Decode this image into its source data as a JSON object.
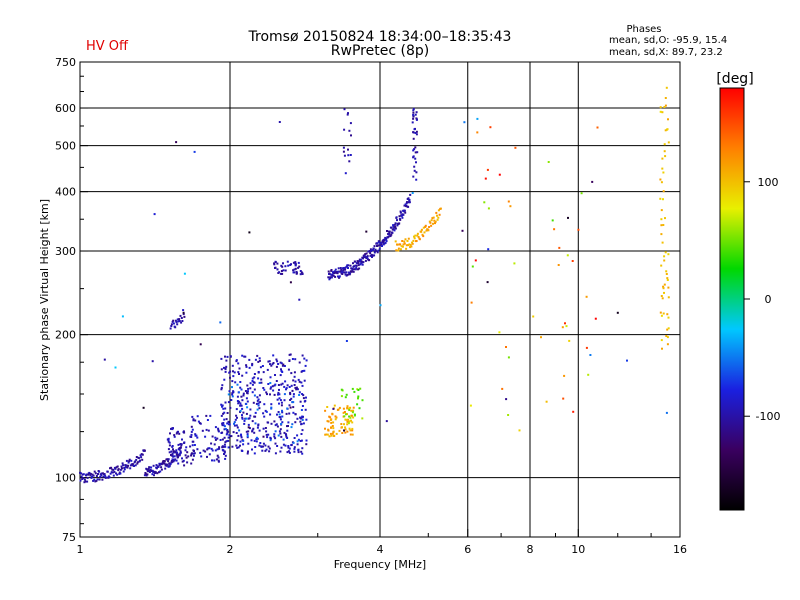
{
  "header": {
    "title_line1": "Tromsø 20150824 18:34:00–18:35:43",
    "title_line2": "RwPretec (8p)",
    "status": "HV Off",
    "phases_title": "Phases",
    "phases_line1": "mean, sd,O: -95.9, 15.4",
    "phases_line2": "mean, sd,X:  89.7, 23.2"
  },
  "colors": {
    "status": "#e00000",
    "grid": "#000000",
    "points_dominant": "#1e2ed6"
  },
  "chart_data": {
    "type": "scatter",
    "xlabel": "Frequency [MHz]",
    "ylabel": "Stationary phase Virtual Height [km]",
    "x_scale": "log",
    "y_scale": "log",
    "xlim": [
      1,
      16
    ],
    "ylim": [
      75,
      750
    ],
    "x_ticks": [
      1,
      2,
      4,
      6,
      8,
      10,
      16
    ],
    "x_minor_ticks": [
      3,
      5,
      7,
      9,
      12,
      14
    ],
    "y_ticks": [
      75,
      100,
      200,
      300,
      400,
      500,
      600,
      750
    ],
    "y_minor_ticks": [
      80,
      90,
      125,
      150,
      175,
      250,
      350,
      450,
      550,
      650,
      700
    ],
    "grid": true,
    "colorbar": {
      "label": "[deg]",
      "ticks": [
        100,
        0,
        -100
      ],
      "range": [
        -180,
        180
      ],
      "stops": [
        "#000000",
        "#3a0060",
        "#1a20e0",
        "#00c8ff",
        "#00d800",
        "#e8f000",
        "#ff8000",
        "#ff0000"
      ]
    },
    "series": [
      {
        "x_range": [
          1.0,
          1.35
        ],
        "y_range": [
          100,
          112
        ],
        "phase": -100,
        "count": 120,
        "kind": "trace"
      },
      {
        "x_range": [
          1.35,
          1.6
        ],
        "y_range": [
          103,
          115
        ],
        "phase": -100,
        "count": 90,
        "kind": "trace"
      },
      {
        "x_range": [
          1.5,
          1.7
        ],
        "y_range": [
          106,
          128
        ],
        "phase": -100,
        "count": 70,
        "kind": "cloud"
      },
      {
        "x_range": [
          1.65,
          2.0
        ],
        "y_range": [
          108,
          135
        ],
        "phase": -95,
        "count": 80,
        "kind": "cloud"
      },
      {
        "x_range": [
          1.92,
          2.85
        ],
        "y_range": [
          112,
          182
        ],
        "phase": -95,
        "count": 420,
        "kind": "cloud"
      },
      {
        "x_range": [
          1.95,
          2.85
        ],
        "y_range": [
          118,
          160
        ],
        "phase": -60,
        "count": 50,
        "kind": "cloud"
      },
      {
        "x_range": [
          1.52,
          1.62
        ],
        "y_range": [
          210,
          222
        ],
        "phase": -100,
        "count": 22,
        "kind": "trace"
      },
      {
        "x_range": [
          2.45,
          2.8
        ],
        "y_range": [
          268,
          285
        ],
        "phase": -100,
        "count": 45,
        "kind": "cloud"
      },
      {
        "x_range": [
          3.15,
          4.6
        ],
        "y_range": [
          268,
          385
        ],
        "phase": -100,
        "count": 230,
        "kind": "trace"
      },
      {
        "x_range": [
          4.3,
          5.3
        ],
        "y_range": [
          308,
          365
        ],
        "phase": 110,
        "count": 70,
        "kind": "trace"
      },
      {
        "x_range": [
          3.1,
          3.55
        ],
        "y_range": [
          122,
          142
        ],
        "phase": 110,
        "count": 80,
        "kind": "cloud"
      },
      {
        "x_range": [
          3.35,
          3.7
        ],
        "y_range": [
          130,
          155
        ],
        "phase": 50,
        "count": 25,
        "kind": "cloud"
      },
      {
        "x_range": [
          4.65,
          4.75
        ],
        "y_range": [
          420,
          600
        ],
        "phase": -100,
        "count": 35,
        "kind": "column"
      },
      {
        "x_range": [
          3.38,
          3.5
        ],
        "y_range": [
          420,
          600
        ],
        "phase": -100,
        "count": 15,
        "kind": "column"
      },
      {
        "x_range": [
          14.6,
          15.2
        ],
        "y_range": [
          180,
          680
        ],
        "phase": 100,
        "count": 60,
        "kind": "column"
      },
      {
        "x_range": [
          6.0,
          11.0
        ],
        "y_range": [
          120,
          560
        ],
        "phase": 120,
        "count": 45,
        "kind": "sparse"
      },
      {
        "x_range": [
          1.1,
          15.5
        ],
        "y_range": [
          120,
          620
        ],
        "phase": -90,
        "count": 40,
        "kind": "sparse"
      }
    ]
  }
}
